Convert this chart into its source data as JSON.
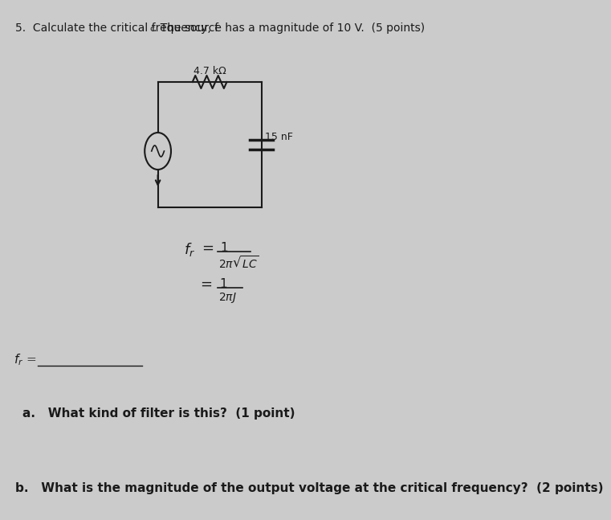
{
  "background_color": "#cbcbcb",
  "resistor_label": "4.7 kΩ",
  "capacitor_label": "15 nF",
  "question_a": "a.   What kind of filter is this?  (1 point)",
  "question_b": "b.   What is the magnitude of the output voltage at the critical frequency?  (2 points)",
  "text_color": "#1a1a1a",
  "circuit_color": "#1a1a1a"
}
